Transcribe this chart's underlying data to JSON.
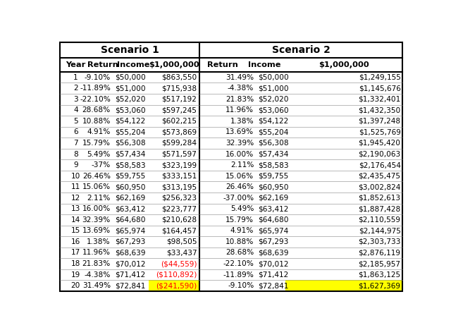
{
  "title1": "Scenario 1",
  "title2": "Scenario 2",
  "years": [
    1,
    2,
    3,
    4,
    5,
    6,
    7,
    8,
    9,
    10,
    11,
    12,
    13,
    14,
    15,
    16,
    17,
    18,
    19,
    20
  ],
  "s1_return": [
    "-9.10%",
    "-11.89%",
    "-22.10%",
    "28.68%",
    "10.88%",
    "4.91%",
    "15.79%",
    "5.49%",
    "-37%",
    "26.46%",
    "15.06%",
    "2.11%",
    "16.00%",
    "32.39%",
    "13.69%",
    "1.38%",
    "11.96%",
    "21.83%",
    "-4.38%",
    "31.49%"
  ],
  "s1_income": [
    "$50,000",
    "$51,000",
    "$52,020",
    "$53,060",
    "$54,122",
    "$55,204",
    "$56,308",
    "$57,434",
    "$58,583",
    "$59,755",
    "$60,950",
    "$62,169",
    "$63,412",
    "$64,680",
    "$65,974",
    "$67,293",
    "$68,639",
    "$70,012",
    "$71,412",
    "$72,841"
  ],
  "s1_value": [
    "$863,550",
    "$715,938",
    "$517,192",
    "$597,245",
    "$602,215",
    "$573,869",
    "$599,284",
    "$571,597",
    "$323,199",
    "$333,151",
    "$313,195",
    "$256,323",
    "$223,777",
    "$210,628",
    "$164,457",
    "$98,505",
    "$33,437",
    "($44,559)",
    "($110,892)",
    "($241,590)"
  ],
  "s1_value_color": [
    "black",
    "black",
    "black",
    "black",
    "black",
    "black",
    "black",
    "black",
    "black",
    "black",
    "black",
    "black",
    "black",
    "black",
    "black",
    "black",
    "black",
    "red",
    "red",
    "red"
  ],
  "s1_value_highlight": [
    false,
    false,
    false,
    false,
    false,
    false,
    false,
    false,
    false,
    false,
    false,
    false,
    false,
    false,
    false,
    false,
    false,
    false,
    false,
    true
  ],
  "s2_return": [
    "31.49%",
    "-4.38%",
    "21.83%",
    "11.96%",
    "1.38%",
    "13.69%",
    "32.39%",
    "16.00%",
    "2.11%",
    "15.06%",
    "26.46%",
    "-37.00%",
    "5.49%",
    "15.79%",
    "4.91%",
    "10.88%",
    "28.68%",
    "-22.10%",
    "-11.89%",
    "-9.10%"
  ],
  "s2_income": [
    "$50,000",
    "$51,000",
    "$52,020",
    "$53,060",
    "$54,122",
    "$55,204",
    "$56,308",
    "$57,434",
    "$58,583",
    "$59,755",
    "$60,950",
    "$62,169",
    "$63,412",
    "$64,680",
    "$65,974",
    "$67,293",
    "$68,639",
    "$70,012",
    "$71,412",
    "$72,841"
  ],
  "s2_value": [
    "$1,249,155",
    "$1,145,676",
    "$1,332,401",
    "$1,432,350",
    "$1,397,248",
    "$1,525,769",
    "$1,945,420",
    "$2,190,063",
    "$2,176,454",
    "$2,435,475",
    "$3,002,824",
    "$1,852,613",
    "$1,887,428",
    "$2,110,559",
    "$2,144,975",
    "$2,303,733",
    "$2,876,119",
    "$2,185,957",
    "$1,863,125",
    "$1,627,369"
  ],
  "s2_value_color": [
    "black",
    "black",
    "black",
    "black",
    "black",
    "black",
    "black",
    "black",
    "black",
    "black",
    "black",
    "black",
    "black",
    "black",
    "black",
    "black",
    "black",
    "black",
    "black",
    "black"
  ],
  "s2_value_highlight": [
    false,
    false,
    false,
    false,
    false,
    false,
    false,
    false,
    false,
    false,
    false,
    false,
    false,
    false,
    false,
    false,
    false,
    false,
    false,
    true
  ],
  "bg_color": "white",
  "highlight_color": "#FFFF00"
}
